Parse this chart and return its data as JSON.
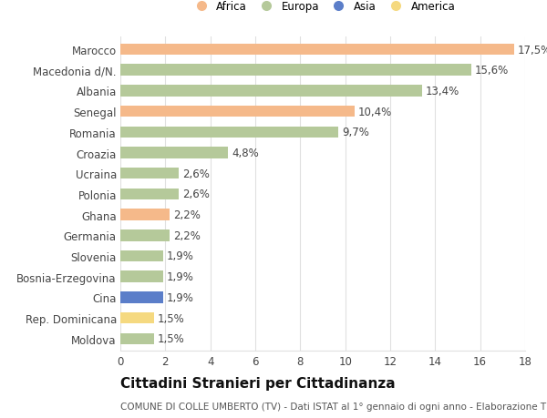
{
  "categories": [
    "Moldova",
    "Rep. Dominicana",
    "Cina",
    "Bosnia-Erzegovina",
    "Slovenia",
    "Germania",
    "Ghana",
    "Polonia",
    "Ucraina",
    "Croazia",
    "Romania",
    "Senegal",
    "Albania",
    "Macedonia d/N.",
    "Marocco"
  ],
  "values": [
    1.5,
    1.5,
    1.9,
    1.9,
    1.9,
    2.2,
    2.2,
    2.6,
    2.6,
    4.8,
    9.7,
    10.4,
    13.4,
    15.6,
    17.5
  ],
  "continents": [
    "Europa",
    "America",
    "Asia",
    "Europa",
    "Europa",
    "Europa",
    "Africa",
    "Europa",
    "Europa",
    "Europa",
    "Europa",
    "Africa",
    "Europa",
    "Europa",
    "Africa"
  ],
  "colors": {
    "Africa": "#F5B98A",
    "Europa": "#B5C99A",
    "Asia": "#5B7EC9",
    "America": "#F5D980"
  },
  "legend_order": [
    "Africa",
    "Europa",
    "Asia",
    "America"
  ],
  "title": "Cittadini Stranieri per Cittadinanza",
  "subtitle": "COMUNE DI COLLE UMBERTO (TV) - Dati ISTAT al 1° gennaio di ogni anno - Elaborazione TUTTITALIA.IT",
  "xlim": [
    0,
    18
  ],
  "xticks": [
    0,
    2,
    4,
    6,
    8,
    10,
    12,
    14,
    16,
    18
  ],
  "bg_color": "#ffffff",
  "grid_color": "#e0e0e0",
  "bar_height": 0.55,
  "label_fontsize": 8.5,
  "tick_fontsize": 8.5,
  "title_fontsize": 11,
  "subtitle_fontsize": 7.5
}
